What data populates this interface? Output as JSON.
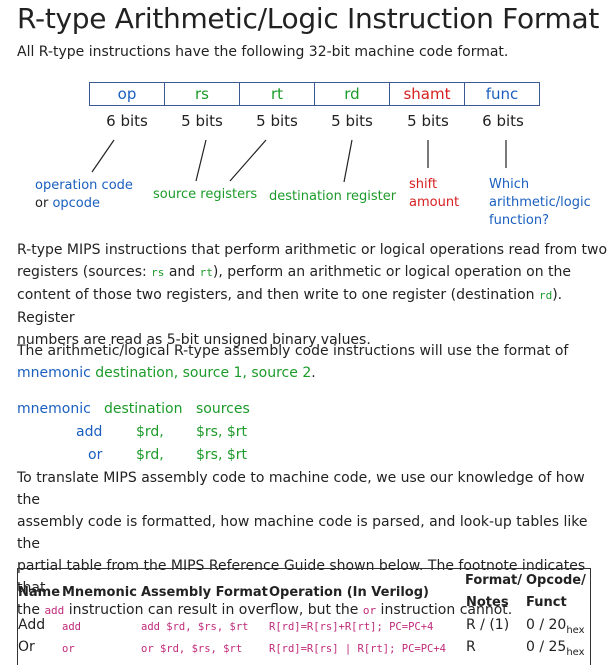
{
  "title": "R-type Arithmetic/Logic Instruction Format",
  "intro": "All R-type instructions have the following 32-bit machine code format.",
  "fields": [
    {
      "name": "op",
      "bits": "6 bits"
    },
    {
      "name": "rs",
      "bits": "5 bits"
    },
    {
      "name": "rt",
      "bits": "5 bits"
    },
    {
      "name": "rd",
      "bits": "5 bits"
    },
    {
      "name": "shamt",
      "bits": "5 bits"
    },
    {
      "name": "func",
      "bits": "6 bits"
    }
  ],
  "annotations": {
    "op_line1": "operation code",
    "op_or": "or",
    "op_line2": "opcode",
    "source": "source registers",
    "dest": "destination register",
    "shift1": "shift",
    "shift2": "amount",
    "which1": "Which",
    "which2": "arithmetic/logic",
    "which3": "function?"
  },
  "para1": {
    "a": "R-type MIPS instructions that perform arithmetic or logical operations read from two",
    "b1": "registers (sources: ",
    "rs": "rs",
    "b2": " and ",
    "rt": "rt",
    "b3": "), perform an arithmetic or logical operation on the",
    "c": "content of those two registers, and then write to one register (destination ",
    "rd": "rd",
    "c2": "). Register",
    "d": "numbers are read as 5-bit unsigned binary values."
  },
  "para2": {
    "a": "The arithmetic/logical R-type assembly code instructions will use the format of",
    "mnemonic": "mnemonic",
    "destination": "destination,",
    "source1": "source 1,",
    "source2": "source 2",
    "end": "."
  },
  "asm": {
    "h_mnemonic": "mnemonic",
    "h_destination": "destination",
    "h_sources": "sources",
    "rows": [
      {
        "mn": "add",
        "dst": "$rd,",
        "src": "$rs, $rt"
      },
      {
        "mn": "or",
        "dst": "$rd,",
        "src": "$rs, $rt"
      }
    ]
  },
  "para3": {
    "a": "To translate MIPS assembly code to machine code, we use our knowledge of how the",
    "b": "assembly code is formatted, how machine code is parsed, and look-up tables like the",
    "c": "partial table from the MIPS Reference Guide shown below. The footnote indicates that",
    "d1": "the ",
    "add": "add",
    "d2": " instruction can result in overflow, but the ",
    "or": "or",
    "d3": " instruction cannot."
  },
  "table": {
    "h_name": "Name",
    "h_mnemonic": "Mnemonic",
    "h_asm": "Assembly Format",
    "h_op": "Operation (In Verilog)",
    "h_fmt1": "Format/",
    "h_fmt2": "Notes",
    "h_opc1": "Opcode/",
    "h_opc2": "Funct",
    "rows": [
      {
        "name": "Add",
        "mn": "add",
        "asm": "add $rd, $rs, $rt",
        "op": "R[rd]=R[rs]+R[rt]; PC=PC+4",
        "fmt": "R / (1)",
        "opc": "0 / 20",
        "sub": "hex"
      },
      {
        "name": "Or",
        "mn": "or",
        "asm": "or $rd, $rs, $rt",
        "op": "R[rd]=R[rs] | R[rt]; PC=PC+4",
        "fmt": "R",
        "opc": "0 / 25",
        "sub": "hex"
      }
    ]
  },
  "colors": {
    "blue": "#1a5fbf",
    "green": "#1c9b2a",
    "red": "#d61f1f",
    "code": "#c02a7a"
  }
}
